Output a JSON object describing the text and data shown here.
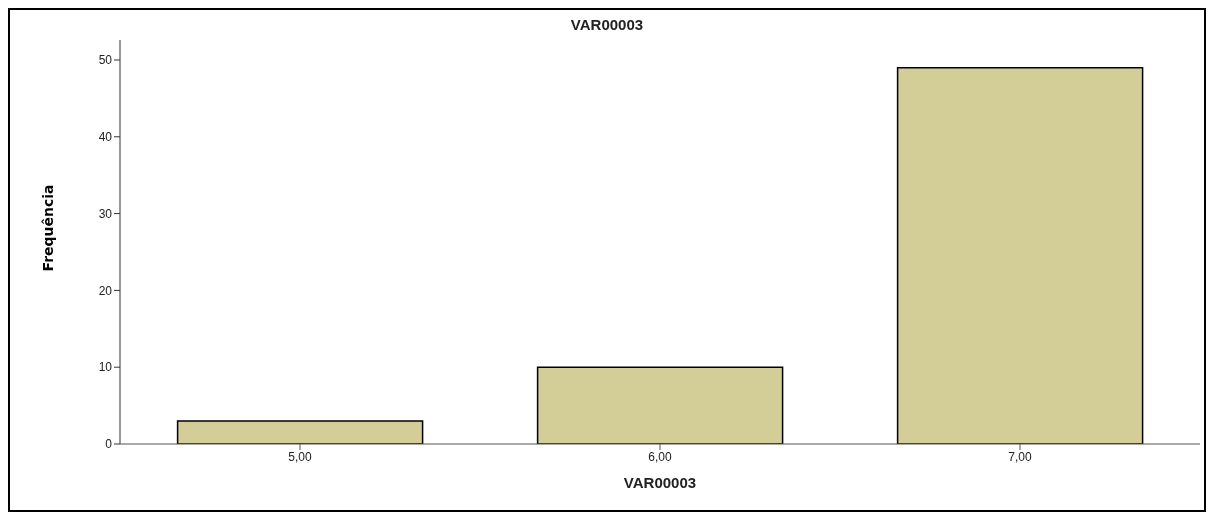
{
  "chart_data": {
    "type": "bar",
    "title": "VAR00003",
    "xlabel": "VAR00003",
    "ylabel": "Frequência",
    "categories": [
      "5,00",
      "6,00",
      "7,00"
    ],
    "values": [
      3,
      10,
      49
    ],
    "color": "#d3ce98",
    "ylim": [
      0,
      52.6
    ],
    "yticks": [
      0,
      10,
      20,
      30,
      40,
      50
    ],
    "grid": false
  }
}
